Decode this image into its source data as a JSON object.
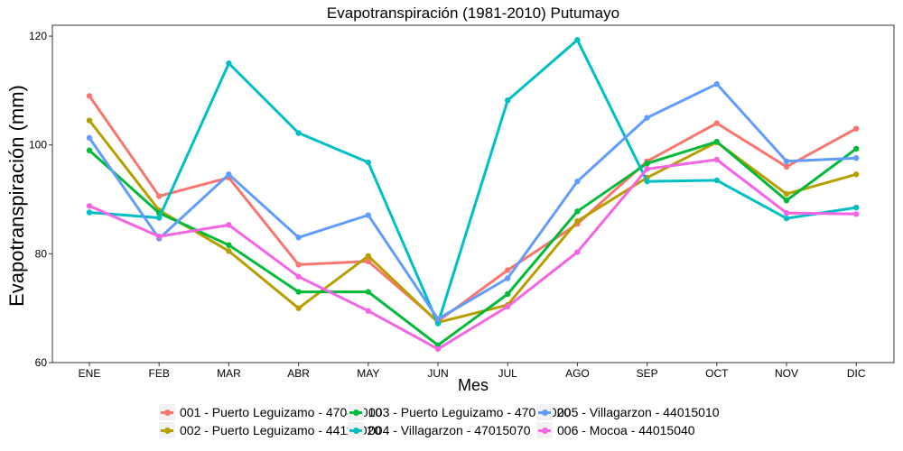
{
  "chart_data": {
    "type": "line",
    "title": "Evapotranspiración (1981-2010)  Putumayo",
    "xlabel": "Mes",
    "ylabel": "Evapotranspiración  (mm)",
    "categories": [
      "ENE",
      "FEB",
      "MAR",
      "ABR",
      "MAY",
      "JUN",
      "JUL",
      "AGO",
      "SEP",
      "OCT",
      "NOV",
      "DIC"
    ],
    "ylim": [
      60,
      122
    ],
    "yticks": [
      60,
      80,
      100,
      120
    ],
    "grid": false,
    "legend_position": "bottom",
    "series": [
      {
        "name": "001 - Puerto Leguizamo - 47045010",
        "color": "#F8766D",
        "values": [
          109.0,
          90.6,
          94.0,
          78.0,
          78.6,
          67.6,
          77.0,
          85.5,
          97.0,
          104.0,
          96.0,
          103.0
        ]
      },
      {
        "name": "002 - Puerto Leguizamo - 44115020",
        "color": "#B79F00",
        "values": [
          104.5,
          88.0,
          80.5,
          70.0,
          79.6,
          67.4,
          70.6,
          86.0,
          94.0,
          100.5,
          91.0,
          94.6
        ]
      },
      {
        "name": "003 - Puerto Leguizamo - 47035020",
        "color": "#00BA38",
        "values": [
          99.0,
          87.5,
          81.6,
          73.0,
          73.0,
          63.2,
          72.6,
          87.8,
          96.6,
          100.6,
          89.8,
          99.3
        ]
      },
      {
        "name": "004 - Villagarzon - 47015070",
        "color": "#00BFC4",
        "values": [
          87.6,
          86.6,
          115.0,
          102.2,
          96.8,
          67.2,
          108.2,
          119.3,
          93.3,
          93.5,
          86.5,
          88.5
        ]
      },
      {
        "name": "005 - Villagarzon - 44015010",
        "color": "#619CFF",
        "values": [
          101.3,
          82.8,
          94.6,
          83.0,
          87.1,
          68.0,
          75.5,
          93.3,
          105.0,
          111.2,
          97.0,
          97.6
        ]
      },
      {
        "name": "006 - Mocoa - 44015040",
        "color": "#F564E3",
        "values": [
          88.8,
          83.2,
          85.3,
          75.8,
          69.5,
          62.5,
          70.3,
          80.3,
          95.6,
          97.3,
          87.5,
          87.3
        ]
      }
    ]
  }
}
